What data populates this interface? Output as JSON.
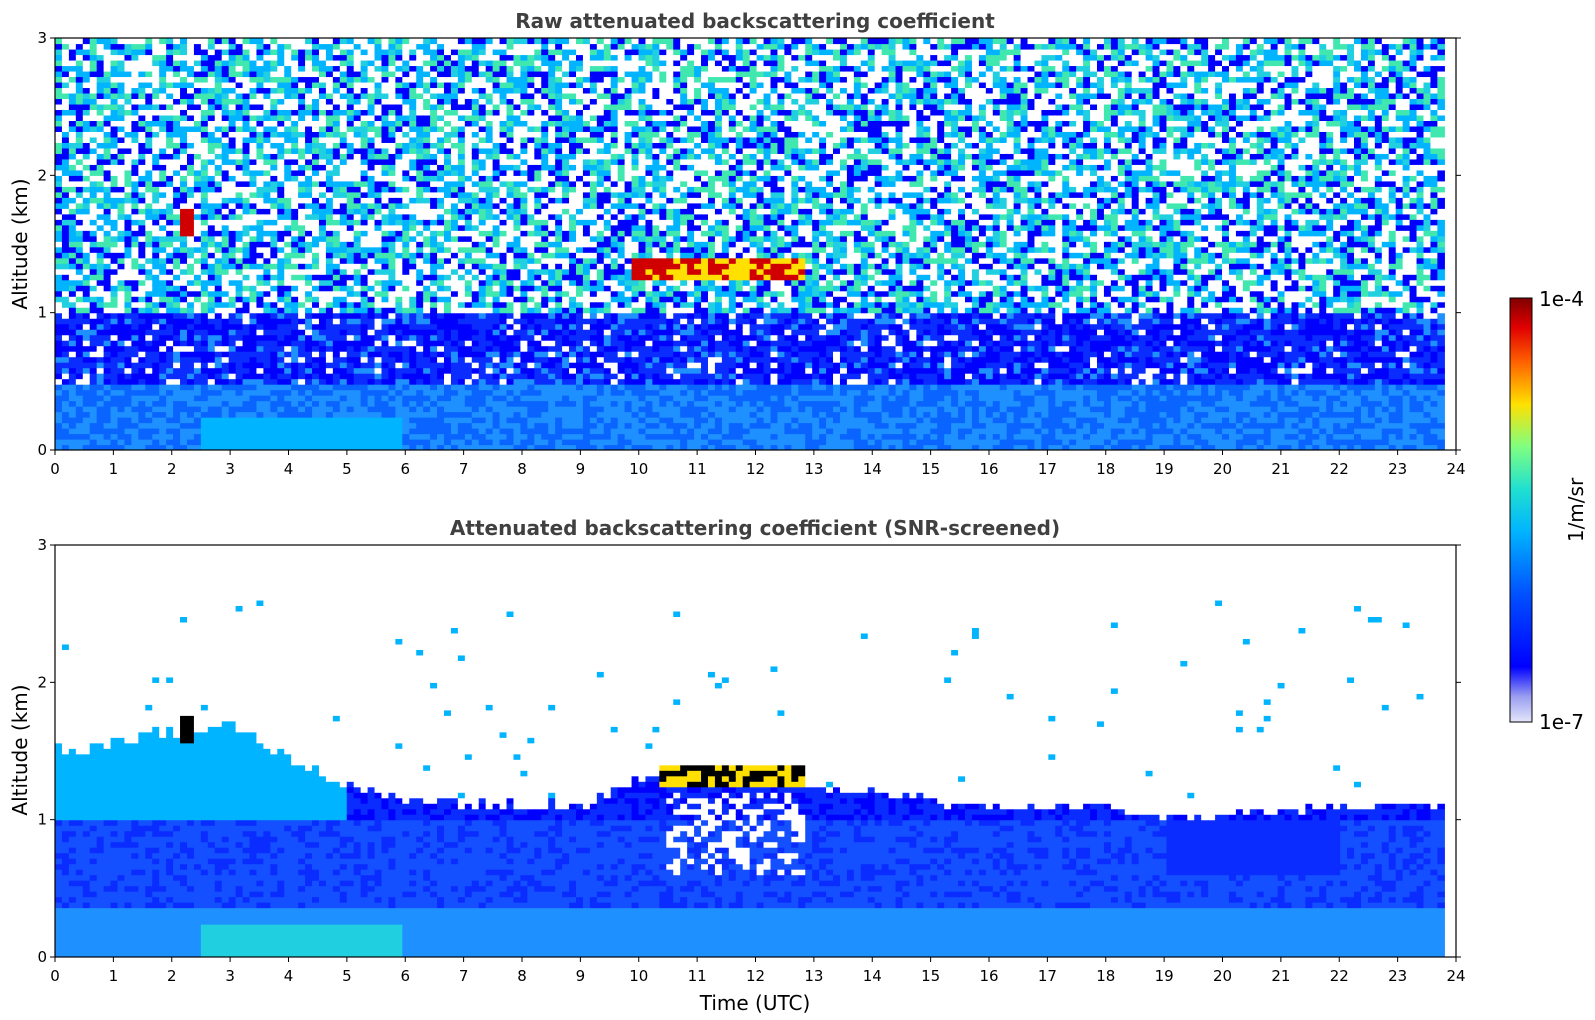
{
  "chart_data": [
    {
      "type": "heatmap",
      "title": "Raw attenuated backscattering coefficient",
      "xlabel": "",
      "ylabel": "Altitude (km)",
      "xlim": [
        0,
        24
      ],
      "ylim": [
        0,
        3
      ],
      "x_ticks": [
        "0",
        "1",
        "2",
        "3",
        "4",
        "5",
        "6",
        "7",
        "8",
        "9",
        "10",
        "11",
        "12",
        "13",
        "14",
        "15",
        "16",
        "17",
        "18",
        "19",
        "20",
        "21",
        "22",
        "23",
        "24"
      ],
      "y_ticks": [
        "0",
        "1",
        "2",
        "3"
      ],
      "data_end_time": 23.8,
      "features": [
        {
          "kind": "boundary_layer",
          "x_range": [
            0,
            23.8
          ],
          "altitude_top": 0.5,
          "level": "medium"
        },
        {
          "kind": "surface_aerosol",
          "x_range": [
            2.5,
            6
          ],
          "altitude_top": 0.25,
          "level": "medium-high"
        },
        {
          "kind": "noise",
          "x_range": [
            0,
            23.8
          ],
          "altitude_range": [
            1,
            3
          ],
          "level": "noisy"
        },
        {
          "kind": "cloud",
          "x": 2.25,
          "altitude_range": [
            1.55,
            1.75
          ],
          "level": "high"
        },
        {
          "kind": "cloud",
          "x_range": [
            9.9,
            12.8
          ],
          "altitude_range": [
            1.2,
            1.45
          ],
          "level": "high"
        },
        {
          "kind": "precipitation_streaks",
          "x_range": [
            10.5,
            12.8
          ],
          "altitude_range": [
            0.4,
            1.2
          ],
          "level": "medium"
        }
      ]
    },
    {
      "type": "heatmap",
      "title": "Attenuated backscattering coefficient (SNR-screened)",
      "xlabel": "Time (UTC)",
      "ylabel": "Altitude (km)",
      "xlim": [
        0,
        24
      ],
      "ylim": [
        0,
        3
      ],
      "x_ticks": [
        "0",
        "1",
        "2",
        "3",
        "4",
        "5",
        "6",
        "7",
        "8",
        "9",
        "10",
        "11",
        "12",
        "13",
        "14",
        "15",
        "16",
        "17",
        "18",
        "19",
        "20",
        "21",
        "22",
        "23",
        "24"
      ],
      "y_ticks": [
        "0",
        "1",
        "2",
        "3"
      ],
      "data_end_time": 23.8,
      "screened_top_km": [
        {
          "t": 0,
          "h": 1.5
        },
        {
          "t": 1,
          "h": 1.55
        },
        {
          "t": 2,
          "h": 1.65
        },
        {
          "t": 3,
          "h": 1.7
        },
        {
          "t": 4,
          "h": 1.45
        },
        {
          "t": 5,
          "h": 1.25
        },
        {
          "t": 6,
          "h": 1.15
        },
        {
          "t": 7,
          "h": 1.12
        },
        {
          "t": 8,
          "h": 1.1
        },
        {
          "t": 9,
          "h": 1.12
        },
        {
          "t": 10,
          "h": 1.3
        },
        {
          "t": 11,
          "h": 1.35
        },
        {
          "t": 12,
          "h": 1.35
        },
        {
          "t": 13,
          "h": 1.25
        },
        {
          "t": 14,
          "h": 1.2
        },
        {
          "t": 15,
          "h": 1.15
        },
        {
          "t": 16,
          "h": 1.1
        },
        {
          "t": 17,
          "h": 1.1
        },
        {
          "t": 18,
          "h": 1.08
        },
        {
          "t": 19,
          "h": 1.05
        },
        {
          "t": 20,
          "h": 1.05
        },
        {
          "t": 21,
          "h": 1.08
        },
        {
          "t": 22,
          "h": 1.1
        },
        {
          "t": 23,
          "h": 1.12
        },
        {
          "t": 23.8,
          "h": 1.12
        }
      ],
      "features": [
        {
          "kind": "cloud",
          "x": 2.25,
          "altitude_range": [
            1.55,
            1.75
          ],
          "level": "very-high"
        },
        {
          "kind": "cloud",
          "x_range": [
            10.3,
            12.8
          ],
          "altitude_range": [
            1.25,
            1.4
          ],
          "level": "very-high"
        },
        {
          "kind": "gaps",
          "x_range": [
            10.5,
            12.8
          ],
          "altitude_range": [
            0.6,
            1.2
          ]
        }
      ]
    }
  ],
  "colorbar": {
    "label": "1/m/sr",
    "max_label": "1e-4",
    "min_label": "1e-7",
    "scale": "log",
    "range": [
      1e-07,
      0.0001
    ],
    "colormap": "jet"
  }
}
